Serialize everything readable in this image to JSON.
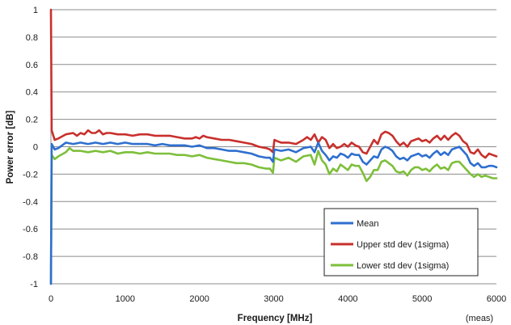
{
  "chart_data": {
    "type": "line",
    "title": "",
    "xlabel": "Frequency [MHz]",
    "ylabel": "Power error [dB]",
    "xlim": [
      0,
      6000
    ],
    "ylim": [
      -1,
      1
    ],
    "x_ticks": [
      0,
      1000,
      2000,
      3000,
      4000,
      5000,
      6000
    ],
    "y_ticks": [
      1,
      0.8,
      0.6,
      0.4,
      0.2,
      0,
      -0.2,
      -0.4,
      -0.6,
      -0.8,
      -1
    ],
    "y_tick_labels": [
      "1",
      "0.8",
      "0.6",
      "0.4",
      "0.2",
      "0",
      "-0.2",
      "-0.4",
      "-0.6",
      "-0.8",
      "-1"
    ],
    "grid": "horizontal",
    "legend_position": "bottom-right",
    "note": "(meas)",
    "series": [
      {
        "name": "Mean",
        "color": "#2e6fcf",
        "points": [
          [
            0,
            -1
          ],
          [
            10,
            0.02
          ],
          [
            50,
            -0.02
          ],
          [
            100,
            -0.01
          ],
          [
            200,
            0.03
          ],
          [
            300,
            0.02
          ],
          [
            400,
            0.03
          ],
          [
            500,
            0.02
          ],
          [
            600,
            0.03
          ],
          [
            700,
            0.02
          ],
          [
            800,
            0.03
          ],
          [
            900,
            0.02
          ],
          [
            1000,
            0.03
          ],
          [
            1100,
            0.02
          ],
          [
            1200,
            0.02
          ],
          [
            1300,
            0.02
          ],
          [
            1400,
            0.01
          ],
          [
            1500,
            0.02
          ],
          [
            1600,
            0.01
          ],
          [
            1700,
            0.01
          ],
          [
            1800,
            0.01
          ],
          [
            1900,
            0.0
          ],
          [
            2000,
            0.01
          ],
          [
            2100,
            -0.01
          ],
          [
            2200,
            -0.01
          ],
          [
            2300,
            -0.02
          ],
          [
            2400,
            -0.03
          ],
          [
            2500,
            -0.03
          ],
          [
            2600,
            -0.04
          ],
          [
            2700,
            -0.05
          ],
          [
            2800,
            -0.07
          ],
          [
            2900,
            -0.08
          ],
          [
            2950,
            -0.08
          ],
          [
            2990,
            -0.11
          ],
          [
            3010,
            -0.02
          ],
          [
            3100,
            -0.03
          ],
          [
            3200,
            -0.02
          ],
          [
            3300,
            -0.04
          ],
          [
            3400,
            -0.01
          ],
          [
            3500,
            0.0
          ],
          [
            3550,
            -0.04
          ],
          [
            3600,
            0.03
          ],
          [
            3650,
            -0.03
          ],
          [
            3700,
            -0.06
          ],
          [
            3750,
            -0.1
          ],
          [
            3800,
            -0.07
          ],
          [
            3850,
            -0.08
          ],
          [
            3900,
            -0.05
          ],
          [
            3950,
            -0.06
          ],
          [
            4000,
            -0.08
          ],
          [
            4050,
            -0.05
          ],
          [
            4100,
            -0.06
          ],
          [
            4150,
            -0.06
          ],
          [
            4200,
            -0.11
          ],
          [
            4250,
            -0.13
          ],
          [
            4300,
            -0.1
          ],
          [
            4350,
            -0.07
          ],
          [
            4400,
            -0.08
          ],
          [
            4450,
            -0.02
          ],
          [
            4500,
            0.0
          ],
          [
            4550,
            -0.01
          ],
          [
            4600,
            -0.03
          ],
          [
            4650,
            -0.07
          ],
          [
            4700,
            -0.09
          ],
          [
            4750,
            -0.08
          ],
          [
            4800,
            -0.1
          ],
          [
            4850,
            -0.07
          ],
          [
            4900,
            -0.06
          ],
          [
            4950,
            -0.05
          ],
          [
            5000,
            -0.07
          ],
          [
            5050,
            -0.06
          ],
          [
            5100,
            -0.08
          ],
          [
            5150,
            -0.05
          ],
          [
            5200,
            -0.03
          ],
          [
            5250,
            -0.06
          ],
          [
            5300,
            -0.04
          ],
          [
            5350,
            -0.06
          ],
          [
            5400,
            -0.02
          ],
          [
            5450,
            -0.01
          ],
          [
            5500,
            0.0
          ],
          [
            5550,
            -0.03
          ],
          [
            5600,
            -0.06
          ],
          [
            5650,
            -0.12
          ],
          [
            5700,
            -0.14
          ],
          [
            5750,
            -0.12
          ],
          [
            5800,
            -0.15
          ],
          [
            5850,
            -0.15
          ],
          [
            5900,
            -0.14
          ],
          [
            5950,
            -0.14
          ],
          [
            6000,
            -0.15
          ]
        ]
      },
      {
        "name": "Upper std dev (1sigma)",
        "color": "#c8302c",
        "points": [
          [
            0,
            1
          ],
          [
            10,
            0.12
          ],
          [
            50,
            0.05
          ],
          [
            100,
            0.06
          ],
          [
            200,
            0.09
          ],
          [
            300,
            0.1
          ],
          [
            350,
            0.08
          ],
          [
            400,
            0.1
          ],
          [
            450,
            0.09
          ],
          [
            500,
            0.12
          ],
          [
            550,
            0.1
          ],
          [
            600,
            0.1
          ],
          [
            650,
            0.12
          ],
          [
            700,
            0.09
          ],
          [
            750,
            0.1
          ],
          [
            800,
            0.1
          ],
          [
            900,
            0.09
          ],
          [
            1000,
            0.09
          ],
          [
            1100,
            0.08
          ],
          [
            1200,
            0.09
          ],
          [
            1300,
            0.09
          ],
          [
            1400,
            0.08
          ],
          [
            1500,
            0.08
          ],
          [
            1600,
            0.08
          ],
          [
            1700,
            0.07
          ],
          [
            1800,
            0.06
          ],
          [
            1900,
            0.06
          ],
          [
            1950,
            0.07
          ],
          [
            2000,
            0.06
          ],
          [
            2050,
            0.08
          ],
          [
            2100,
            0.07
          ],
          [
            2200,
            0.06
          ],
          [
            2300,
            0.05
          ],
          [
            2400,
            0.05
          ],
          [
            2500,
            0.04
          ],
          [
            2600,
            0.03
          ],
          [
            2700,
            0.02
          ],
          [
            2800,
            0.0
          ],
          [
            2900,
            -0.01
          ],
          [
            2950,
            -0.02
          ],
          [
            2990,
            -0.04
          ],
          [
            3010,
            0.05
          ],
          [
            3050,
            0.04
          ],
          [
            3100,
            0.03
          ],
          [
            3200,
            0.03
          ],
          [
            3300,
            0.02
          ],
          [
            3400,
            0.05
          ],
          [
            3450,
            0.07
          ],
          [
            3500,
            0.05
          ],
          [
            3550,
            0.09
          ],
          [
            3600,
            0.03
          ],
          [
            3650,
            0.07
          ],
          [
            3700,
            0.05
          ],
          [
            3750,
            -0.01
          ],
          [
            3800,
            0.02
          ],
          [
            3850,
            -0.01
          ],
          [
            3900,
            0.0
          ],
          [
            3950,
            0.02
          ],
          [
            4000,
            0.0
          ],
          [
            4050,
            0.03
          ],
          [
            4100,
            0.01
          ],
          [
            4150,
            0.0
          ],
          [
            4200,
            -0.04
          ],
          [
            4250,
            -0.05
          ],
          [
            4300,
            0.0
          ],
          [
            4350,
            0.05
          ],
          [
            4400,
            0.02
          ],
          [
            4450,
            0.09
          ],
          [
            4500,
            0.11
          ],
          [
            4550,
            0.1
          ],
          [
            4600,
            0.08
          ],
          [
            4650,
            0.04
          ],
          [
            4700,
            0.01
          ],
          [
            4750,
            0.03
          ],
          [
            4800,
            0.0
          ],
          [
            4850,
            0.04
          ],
          [
            4900,
            0.05
          ],
          [
            4950,
            0.06
          ],
          [
            5000,
            0.04
          ],
          [
            5050,
            0.05
          ],
          [
            5100,
            0.03
          ],
          [
            5150,
            0.06
          ],
          [
            5200,
            0.08
          ],
          [
            5250,
            0.05
          ],
          [
            5300,
            0.08
          ],
          [
            5350,
            0.05
          ],
          [
            5400,
            0.08
          ],
          [
            5450,
            0.1
          ],
          [
            5500,
            0.08
          ],
          [
            5550,
            0.04
          ],
          [
            5600,
            0.02
          ],
          [
            5650,
            -0.04
          ],
          [
            5700,
            -0.05
          ],
          [
            5750,
            -0.02
          ],
          [
            5800,
            -0.06
          ],
          [
            5850,
            -0.08
          ],
          [
            5900,
            -0.05
          ],
          [
            5950,
            -0.06
          ],
          [
            6000,
            -0.07
          ]
        ]
      },
      {
        "name": "Lower std dev (1sigma)",
        "color": "#7dbf3a",
        "points": [
          [
            0,
            -1
          ],
          [
            10,
            -0.06
          ],
          [
            50,
            -0.09
          ],
          [
            100,
            -0.07
          ],
          [
            200,
            -0.04
          ],
          [
            250,
            -0.01
          ],
          [
            300,
            -0.03
          ],
          [
            400,
            -0.03
          ],
          [
            500,
            -0.04
          ],
          [
            600,
            -0.03
          ],
          [
            700,
            -0.04
          ],
          [
            800,
            -0.03
          ],
          [
            900,
            -0.05
          ],
          [
            1000,
            -0.04
          ],
          [
            1100,
            -0.04
          ],
          [
            1200,
            -0.05
          ],
          [
            1300,
            -0.04
          ],
          [
            1400,
            -0.05
          ],
          [
            1500,
            -0.05
          ],
          [
            1600,
            -0.05
          ],
          [
            1700,
            -0.06
          ],
          [
            1800,
            -0.06
          ],
          [
            1900,
            -0.07
          ],
          [
            2000,
            -0.06
          ],
          [
            2100,
            -0.08
          ],
          [
            2200,
            -0.09
          ],
          [
            2300,
            -0.1
          ],
          [
            2400,
            -0.11
          ],
          [
            2500,
            -0.12
          ],
          [
            2600,
            -0.12
          ],
          [
            2700,
            -0.13
          ],
          [
            2800,
            -0.15
          ],
          [
            2900,
            -0.16
          ],
          [
            2950,
            -0.16
          ],
          [
            2990,
            -0.19
          ],
          [
            3010,
            -0.08
          ],
          [
            3100,
            -0.1
          ],
          [
            3200,
            -0.08
          ],
          [
            3300,
            -0.11
          ],
          [
            3400,
            -0.07
          ],
          [
            3500,
            -0.06
          ],
          [
            3550,
            -0.13
          ],
          [
            3600,
            -0.03
          ],
          [
            3650,
            -0.1
          ],
          [
            3700,
            -0.13
          ],
          [
            3750,
            -0.2
          ],
          [
            3800,
            -0.16
          ],
          [
            3850,
            -0.18
          ],
          [
            3900,
            -0.13
          ],
          [
            3950,
            -0.15
          ],
          [
            4000,
            -0.17
          ],
          [
            4050,
            -0.13
          ],
          [
            4100,
            -0.14
          ],
          [
            4150,
            -0.14
          ],
          [
            4200,
            -0.19
          ],
          [
            4250,
            -0.25
          ],
          [
            4300,
            -0.22
          ],
          [
            4350,
            -0.17
          ],
          [
            4400,
            -0.17
          ],
          [
            4450,
            -0.11
          ],
          [
            4500,
            -0.1
          ],
          [
            4550,
            -0.12
          ],
          [
            4600,
            -0.14
          ],
          [
            4650,
            -0.18
          ],
          [
            4700,
            -0.19
          ],
          [
            4750,
            -0.18
          ],
          [
            4800,
            -0.21
          ],
          [
            4850,
            -0.17
          ],
          [
            4900,
            -0.15
          ],
          [
            4950,
            -0.15
          ],
          [
            5000,
            -0.17
          ],
          [
            5050,
            -0.16
          ],
          [
            5100,
            -0.18
          ],
          [
            5150,
            -0.15
          ],
          [
            5200,
            -0.13
          ],
          [
            5250,
            -0.16
          ],
          [
            5300,
            -0.15
          ],
          [
            5350,
            -0.17
          ],
          [
            5400,
            -0.12
          ],
          [
            5450,
            -0.11
          ],
          [
            5500,
            -0.11
          ],
          [
            5550,
            -0.14
          ],
          [
            5600,
            -0.17
          ],
          [
            5650,
            -0.2
          ],
          [
            5700,
            -0.22
          ],
          [
            5750,
            -0.2
          ],
          [
            5800,
            -0.22
          ],
          [
            5850,
            -0.21
          ],
          [
            5900,
            -0.22
          ],
          [
            5950,
            -0.23
          ],
          [
            6000,
            -0.23
          ]
        ]
      }
    ]
  }
}
